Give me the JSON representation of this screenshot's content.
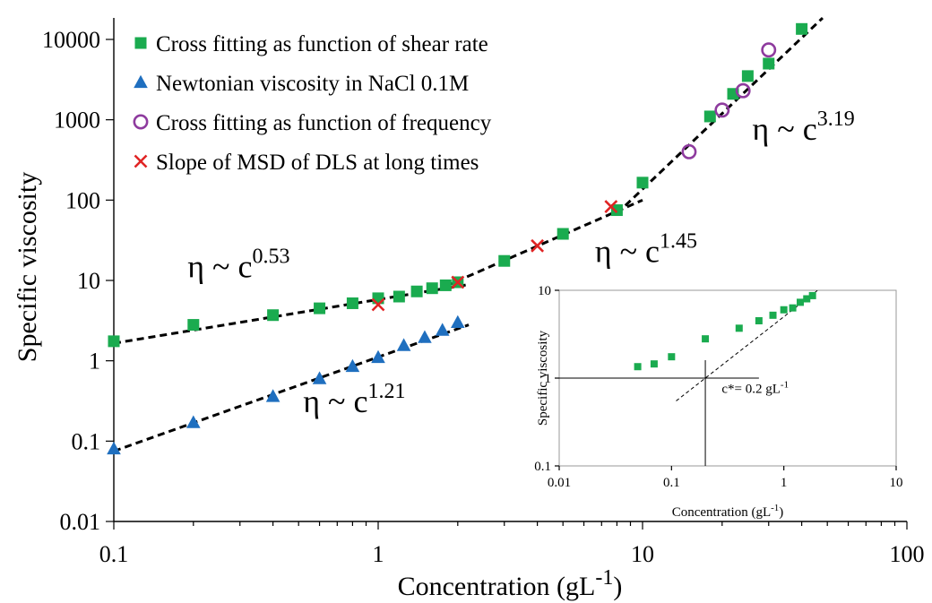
{
  "chart_data": [
    {
      "type": "scatter",
      "xlabel": "Concentration (gL",
      "xlabel_sup": "-1",
      "xlabel_close": ")",
      "ylabel": "Specific viscosity",
      "x_scale": "log",
      "y_scale": "log",
      "xlim": [
        0.1,
        100
      ],
      "ylim": [
        0.01,
        20000
      ],
      "x_ticks": [
        0.1,
        1,
        10,
        100
      ],
      "x_tick_labels": [
        "0.1",
        "1",
        "10",
        "100"
      ],
      "y_ticks": [
        0.01,
        0.1,
        1,
        10,
        100,
        1000,
        10000
      ],
      "y_tick_labels": [
        "0.01",
        "0.1",
        "1",
        "10",
        "100",
        "1000",
        "10000"
      ],
      "legend_position": "top-left",
      "series": [
        {
          "name": "Cross fitting as function of shear rate",
          "marker": "square",
          "color": "#1aab4f",
          "x": [
            0.1,
            0.2,
            0.4,
            0.6,
            0.8,
            1.0,
            1.2,
            1.4,
            1.6,
            1.8,
            2.0,
            3.0,
            5.0,
            8.0,
            10.0,
            18.0,
            22.0,
            25.0,
            30.0,
            40.0
          ],
          "y": [
            1.75,
            2.8,
            3.7,
            4.5,
            5.2,
            6.0,
            6.3,
            7.3,
            8.0,
            8.7,
            9.5,
            17.5,
            38.0,
            75.0,
            165.0,
            1100.0,
            2100.0,
            3500.0,
            5000.0,
            13500.0
          ]
        },
        {
          "name": "Newtonian viscosity in NaCl 0.1M",
          "marker": "triangle",
          "color": "#1f6fbf",
          "x": [
            0.1,
            0.2,
            0.4,
            0.6,
            0.8,
            1.0,
            1.25,
            1.5,
            1.75,
            2.0
          ],
          "y": [
            0.08,
            0.17,
            0.36,
            0.6,
            0.85,
            1.1,
            1.55,
            1.95,
            2.4,
            3.0
          ]
        },
        {
          "name": "Cross fitting as function of frequency",
          "marker": "circle",
          "color": "#8e3b9e",
          "x": [
            15.0,
            20.0,
            24.0,
            30.0
          ],
          "y": [
            400.0,
            1320.0,
            2300.0,
            7400.0
          ]
        },
        {
          "name": "Slope of MSD of DLS at long times",
          "marker": "cross",
          "color": "#e02424",
          "x": [
            1.0,
            2.0,
            4.0,
            7.6
          ],
          "y": [
            5.0,
            9.5,
            27.0,
            83.0
          ]
        }
      ],
      "fits": [
        {
          "x": [
            0.1,
            2.2
          ],
          "y": [
            1.65,
            8.9
          ]
        },
        {
          "x": [
            1.8,
            10.0
          ],
          "y": [
            8.5,
            100.0
          ]
        },
        {
          "x": [
            8.0,
            48.0
          ],
          "y": [
            68.0,
            18500.0
          ]
        },
        {
          "x": [
            0.1,
            2.2
          ],
          "y": [
            0.075,
            2.8
          ]
        }
      ],
      "annotations": [
        {
          "base": "η ~ c",
          "sup": "0.53",
          "x": 0.19,
          "y": 11.0
        },
        {
          "base": "η ~ c",
          "sup": "1.21",
          "x": 0.52,
          "y": 0.23
        },
        {
          "base": "η ~ c",
          "sup": "1.45",
          "x": 6.6,
          "y": 17.0
        },
        {
          "base": "η ~ c",
          "sup": "3.19",
          "x": 26.0,
          "y": 560.0
        }
      ]
    },
    {
      "type": "scatter",
      "xlabel": "Concentration (gL",
      "xlabel_sup": "-1",
      "xlabel_close": ")",
      "ylabel": "Specific viscosity",
      "x_scale": "log",
      "y_scale": "log",
      "xlim": [
        0.01,
        10
      ],
      "ylim": [
        0.1,
        10
      ],
      "x_ticks": [
        0.01,
        0.1,
        1,
        10
      ],
      "x_tick_labels": [
        "0.01",
        "0.1",
        "1",
        "10"
      ],
      "y_ticks": [
        0.1,
        1,
        10
      ],
      "y_tick_labels": [
        "0.1",
        "1",
        "10"
      ],
      "series": [
        {
          "marker": "square",
          "color": "#1aab4f",
          "x": [
            0.05,
            0.07,
            0.1,
            0.2,
            0.4,
            0.6,
            0.8,
            1.0,
            1.2,
            1.4,
            1.6,
            1.8
          ],
          "y": [
            1.35,
            1.45,
            1.75,
            2.8,
            3.7,
            4.5,
            5.2,
            6.0,
            6.3,
            7.3,
            8.0,
            8.7
          ]
        }
      ],
      "crosshair": {
        "x": 0.2,
        "y": 1
      },
      "fit": {
        "x": [
          0.11,
          2.0
        ],
        "y": [
          0.55,
          10.0
        ]
      },
      "annotation": {
        "base": "c*= 0.2 gL",
        "sup": "-1",
        "x": 0.28,
        "y": 0.68
      }
    }
  ]
}
